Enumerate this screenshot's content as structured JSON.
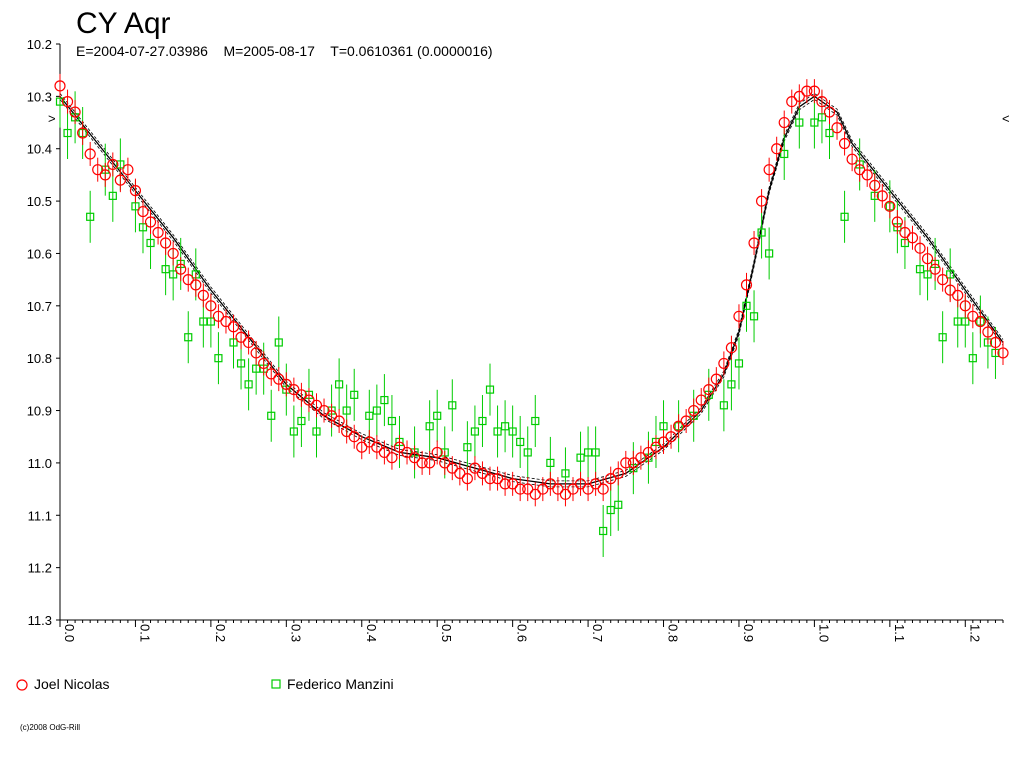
{
  "chart_data": {
    "type": "scatter",
    "title": "CY Aqr",
    "subtitle": "E=2004-07-27.03986    M=2005-08-17    T=0.0610361 (0.0000016)",
    "y_reversed": true,
    "xlim": [
      0.0,
      1.25
    ],
    "ylim": [
      10.2,
      11.3
    ],
    "x_ticks": [
      "0.0",
      "0.1",
      "0.2",
      "0.3",
      "0.4",
      "0.5",
      "0.6",
      "0.7",
      "0.8",
      "0.9",
      "1.0",
      "1.1",
      "1.2"
    ],
    "y_ticks": [
      "10.2",
      "10.3",
      "10.4",
      "10.5",
      "10.6",
      "10.7",
      "10.8",
      "10.9",
      "11.0",
      "11.1",
      "11.2",
      "11.3"
    ],
    "side_markers": [
      ">",
      "<"
    ],
    "fit_curve": {
      "x": [
        0.0,
        0.05,
        0.1,
        0.15,
        0.2,
        0.25,
        0.3,
        0.35,
        0.4,
        0.45,
        0.5,
        0.55,
        0.6,
        0.65,
        0.7,
        0.75,
        0.8,
        0.85,
        0.88,
        0.9,
        0.92,
        0.94,
        0.96,
        0.98,
        1.0,
        1.03,
        1.05,
        1.1,
        1.15,
        1.2,
        1.25
      ],
      "y": [
        10.3,
        10.39,
        10.48,
        10.57,
        10.67,
        10.76,
        10.85,
        10.91,
        10.95,
        10.98,
        10.99,
        11.01,
        11.03,
        11.04,
        11.04,
        11.02,
        10.97,
        10.9,
        10.83,
        10.75,
        10.62,
        10.48,
        10.38,
        10.32,
        10.3,
        10.33,
        10.39,
        10.48,
        10.57,
        10.67,
        10.77
      ]
    },
    "series": [
      {
        "name": "Joel Nicolas",
        "marker": "circle",
        "color": "#ff0000",
        "x": [
          0.0,
          0.01,
          0.02,
          0.03,
          0.04,
          0.05,
          0.06,
          0.07,
          0.08,
          0.09,
          0.1,
          0.11,
          0.12,
          0.13,
          0.14,
          0.15,
          0.16,
          0.17,
          0.18,
          0.19,
          0.2,
          0.21,
          0.22,
          0.23,
          0.24,
          0.25,
          0.26,
          0.27,
          0.28,
          0.29,
          0.3,
          0.31,
          0.32,
          0.33,
          0.34,
          0.35,
          0.36,
          0.37,
          0.38,
          0.39,
          0.4,
          0.41,
          0.42,
          0.43,
          0.44,
          0.45,
          0.46,
          0.47,
          0.48,
          0.49,
          0.5,
          0.51,
          0.52,
          0.53,
          0.54,
          0.55,
          0.56,
          0.57,
          0.58,
          0.59,
          0.6,
          0.61,
          0.62,
          0.63,
          0.64,
          0.65,
          0.66,
          0.67,
          0.68,
          0.69,
          0.7,
          0.71,
          0.72,
          0.73,
          0.74,
          0.75,
          0.76,
          0.77,
          0.78,
          0.79,
          0.8,
          0.81,
          0.82,
          0.83,
          0.84,
          0.85,
          0.86,
          0.87,
          0.88,
          0.89,
          0.9,
          0.91,
          0.92,
          0.93,
          0.94,
          0.95,
          0.96,
          0.97,
          0.98,
          0.99,
          1.0,
          1.01,
          1.02,
          1.03,
          1.04,
          1.05,
          1.06,
          1.07,
          1.08,
          1.09,
          1.1,
          1.11,
          1.12,
          1.13,
          1.14,
          1.15,
          1.16,
          1.17,
          1.18,
          1.19,
          1.2,
          1.21,
          1.22,
          1.23,
          1.24,
          1.25
        ],
        "y": [
          10.28,
          10.31,
          10.33,
          10.37,
          10.41,
          10.44,
          10.45,
          10.43,
          10.46,
          10.44,
          10.48,
          10.52,
          10.54,
          10.56,
          10.58,
          10.6,
          10.63,
          10.65,
          10.66,
          10.68,
          10.7,
          10.72,
          10.73,
          10.74,
          10.76,
          10.77,
          10.79,
          10.81,
          10.83,
          10.84,
          10.85,
          10.86,
          10.87,
          10.88,
          10.89,
          10.9,
          10.91,
          10.92,
          10.94,
          10.95,
          10.97,
          10.96,
          10.97,
          10.98,
          10.99,
          10.97,
          10.98,
          10.99,
          11.0,
          11.0,
          10.98,
          11.0,
          11.01,
          11.02,
          11.03,
          11.01,
          11.02,
          11.03,
          11.03,
          11.04,
          11.04,
          11.05,
          11.05,
          11.06,
          11.05,
          11.04,
          11.05,
          11.06,
          11.05,
          11.04,
          11.05,
          11.04,
          11.05,
          11.03,
          11.02,
          11.0,
          11.0,
          10.99,
          10.98,
          10.97,
          10.96,
          10.95,
          10.93,
          10.92,
          10.9,
          10.88,
          10.86,
          10.84,
          10.81,
          10.78,
          10.72,
          10.66,
          10.58,
          10.5,
          10.44,
          10.4,
          10.35,
          10.31,
          10.3,
          10.29,
          10.29,
          10.31,
          10.33,
          10.36,
          10.39,
          10.42,
          10.44,
          10.45,
          10.47,
          10.49,
          10.51,
          10.54,
          10.56,
          10.57,
          10.59,
          10.61,
          10.63,
          10.65,
          10.67,
          10.68,
          10.7,
          10.72,
          10.73,
          10.75,
          10.77,
          10.79
        ]
      },
      {
        "name": "Federico Manzini",
        "marker": "square",
        "color": "#00cc00",
        "x": [
          0.0,
          0.01,
          0.02,
          0.03,
          0.04,
          0.06,
          0.07,
          0.08,
          0.1,
          0.11,
          0.12,
          0.14,
          0.15,
          0.16,
          0.17,
          0.18,
          0.19,
          0.2,
          0.21,
          0.23,
          0.24,
          0.25,
          0.26,
          0.27,
          0.28,
          0.29,
          0.3,
          0.31,
          0.32,
          0.33,
          0.34,
          0.36,
          0.37,
          0.38,
          0.39,
          0.41,
          0.42,
          0.43,
          0.44,
          0.45,
          0.47,
          0.49,
          0.5,
          0.51,
          0.52,
          0.54,
          0.55,
          0.56,
          0.57,
          0.58,
          0.59,
          0.6,
          0.61,
          0.62,
          0.63,
          0.65,
          0.67,
          0.69,
          0.7,
          0.71,
          0.72,
          0.73,
          0.74,
          0.76,
          0.78,
          0.79,
          0.8,
          0.82,
          0.84,
          0.86,
          0.88,
          0.89,
          0.9,
          0.91,
          0.92,
          0.93,
          0.94,
          0.96,
          0.98,
          1.0,
          1.01,
          1.02,
          1.04,
          1.06,
          1.08,
          1.1,
          1.11,
          1.12,
          1.14,
          1.15,
          1.16,
          1.17,
          1.18,
          1.19,
          1.2,
          1.21,
          1.22,
          1.23,
          1.24
        ],
        "y": [
          10.31,
          10.37,
          10.34,
          10.37,
          10.53,
          10.44,
          10.49,
          10.43,
          10.51,
          10.55,
          10.58,
          10.63,
          10.64,
          10.62,
          10.76,
          10.64,
          10.73,
          10.73,
          10.8,
          10.77,
          10.81,
          10.85,
          10.82,
          10.82,
          10.91,
          10.77,
          10.86,
          10.94,
          10.92,
          10.87,
          10.94,
          10.9,
          10.85,
          10.9,
          10.87,
          10.91,
          10.9,
          10.88,
          10.92,
          10.96,
          10.98,
          10.93,
          10.91,
          10.98,
          10.89,
          10.97,
          10.94,
          10.92,
          10.86,
          10.94,
          10.93,
          10.94,
          10.96,
          10.98,
          10.92,
          11.0,
          11.02,
          10.99,
          10.98,
          10.98,
          11.13,
          11.09,
          11.08,
          11.01,
          10.99,
          10.96,
          10.93,
          10.93,
          10.91,
          10.87,
          10.89,
          10.85,
          10.81,
          10.7,
          10.72,
          10.56,
          10.6,
          10.41,
          10.35,
          10.35,
          10.34,
          10.37,
          10.53,
          10.43,
          10.49,
          10.51,
          10.55,
          10.58,
          10.63,
          10.64,
          10.62,
          10.76,
          10.64,
          10.73,
          10.73,
          10.8,
          10.73,
          10.77,
          10.79
        ]
      }
    ],
    "legend_position": "bottom-left",
    "grid": false
  },
  "copyright": "(c)2008 OdG-Rill"
}
